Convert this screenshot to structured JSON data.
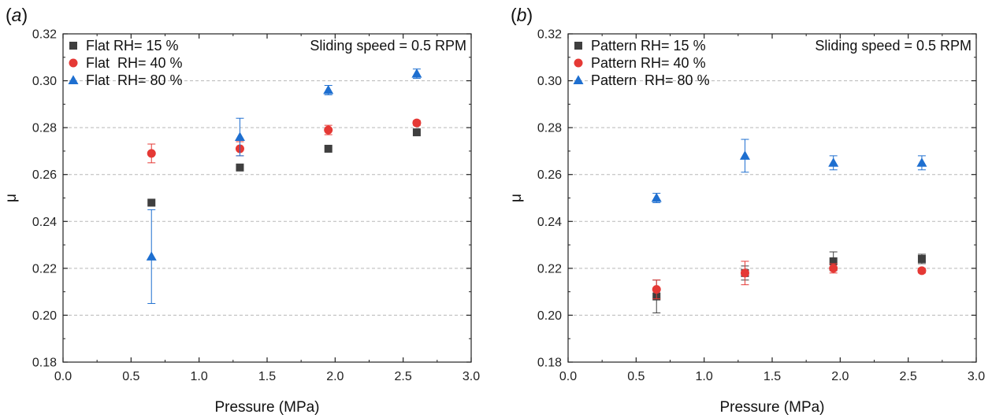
{
  "chart_data": [
    {
      "type": "scatter",
      "panel_label": "(a)",
      "xlabel": "Pressure (MPa)",
      "ylabel": "μ",
      "xlim": [
        0.0,
        3.0
      ],
      "ylim": [
        0.18,
        0.32
      ],
      "x_ticks": [
        "0.0",
        "0.5",
        "1.0",
        "1.5",
        "2.0",
        "2.5",
        "3.0"
      ],
      "y_ticks": [
        "0.18",
        "0.20",
        "0.22",
        "0.24",
        "0.26",
        "0.28",
        "0.30",
        "0.32"
      ],
      "grid": "horizontal dashed",
      "legend_position": "top-left",
      "annotation": "Sliding speed = 0.5 RPM",
      "series": [
        {
          "name": "Flat RH= 15 %",
          "marker": "square",
          "color": "#3f3f3f",
          "x": [
            0.65,
            1.3,
            1.95,
            2.6
          ],
          "y": [
            0.248,
            0.263,
            0.271,
            0.278
          ],
          "err": [
            0.0,
            0.0,
            0.0,
            0.0
          ]
        },
        {
          "name": "Flat  RH= 40 %",
          "marker": "circle",
          "color": "#e53935",
          "x": [
            0.65,
            1.3,
            1.95,
            2.6
          ],
          "y": [
            0.269,
            0.271,
            0.279,
            0.282
          ],
          "err": [
            0.004,
            0.003,
            0.002,
            0.001
          ]
        },
        {
          "name": "Flat  RH= 80 %",
          "marker": "triangle",
          "color": "#1e6fd0",
          "x": [
            0.65,
            1.3,
            1.95,
            2.6
          ],
          "y": [
            0.225,
            0.276,
            0.296,
            0.303
          ],
          "err": [
            0.02,
            0.008,
            0.002,
            0.002
          ]
        }
      ]
    },
    {
      "type": "scatter",
      "panel_label": "(b)",
      "xlabel": "Pressure (MPa)",
      "ylabel": "μ",
      "xlim": [
        0.0,
        3.0
      ],
      "ylim": [
        0.18,
        0.32
      ],
      "x_ticks": [
        "0.0",
        "0.5",
        "1.0",
        "1.5",
        "2.0",
        "2.5",
        "3.0"
      ],
      "y_ticks": [
        "0.18",
        "0.20",
        "0.22",
        "0.24",
        "0.26",
        "0.28",
        "0.30",
        "0.32"
      ],
      "grid": "horizontal dashed",
      "legend_position": "top-left",
      "annotation": "Sliding speed = 0.5 RPM",
      "series": [
        {
          "name": "Pattern RH= 15 %",
          "marker": "square",
          "color": "#3f3f3f",
          "x": [
            0.65,
            1.3,
            1.95,
            2.6
          ],
          "y": [
            0.208,
            0.218,
            0.223,
            0.224
          ],
          "err": [
            0.007,
            0.003,
            0.004,
            0.002
          ]
        },
        {
          "name": "Pattern RH= 40 %",
          "marker": "circle",
          "color": "#e53935",
          "x": [
            0.65,
            1.3,
            1.95,
            2.6
          ],
          "y": [
            0.211,
            0.218,
            0.22,
            0.219
          ],
          "err": [
            0.004,
            0.005,
            0.002,
            0.001
          ]
        },
        {
          "name": "Pattern  RH= 80 %",
          "marker": "triangle",
          "color": "#1e6fd0",
          "x": [
            0.65,
            1.3,
            1.95,
            2.6
          ],
          "y": [
            0.25,
            0.268,
            0.265,
            0.265
          ],
          "err": [
            0.002,
            0.007,
            0.003,
            0.003
          ]
        }
      ]
    }
  ]
}
